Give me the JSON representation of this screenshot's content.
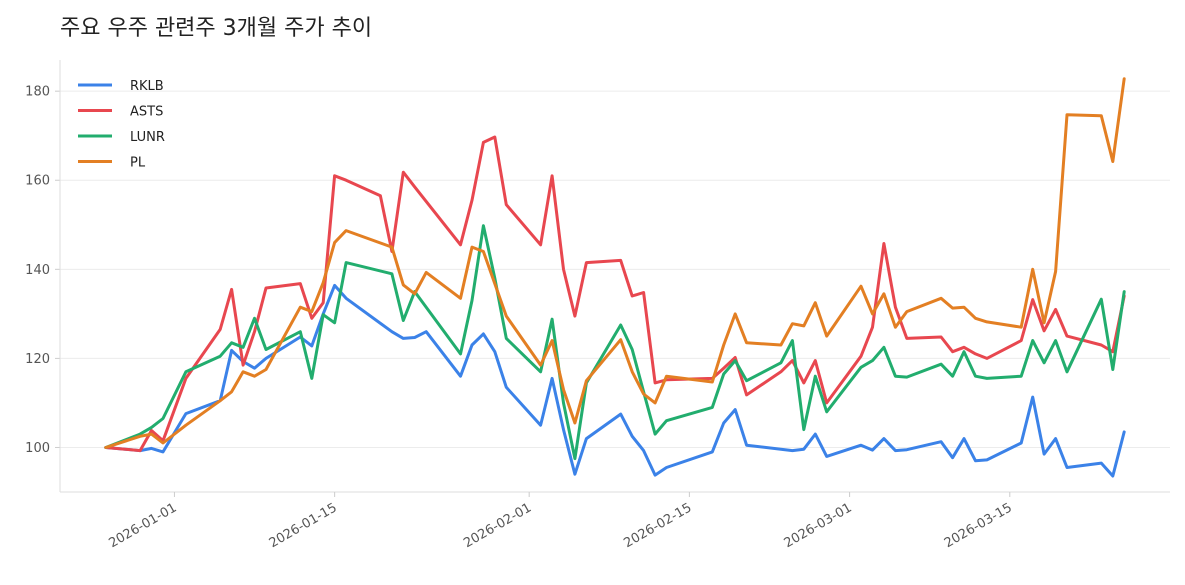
{
  "chart_data": {
    "type": "line",
    "title": "주요 우주 관련주 3개월 주가 추이",
    "xlabel": "",
    "ylabel": "",
    "x_range": [
      "2025-12-22",
      "2026-03-29"
    ],
    "ylim": [
      90,
      187
    ],
    "x_ticks": [
      "2026-01-01",
      "2026-01-15",
      "2026-02-01",
      "2026-02-15",
      "2026-03-01",
      "2026-03-15"
    ],
    "y_ticks": [
      100,
      120,
      140,
      160,
      180
    ],
    "grid": "horizontal",
    "legend": "top-left",
    "series": [
      {
        "name": "RKLB",
        "color": "#3b82e8",
        "points": [
          [
            "2025-12-26",
            100
          ],
          [
            "2025-12-29",
            99.3
          ],
          [
            "2025-12-30",
            99.8
          ],
          [
            "2025-12-31",
            99
          ],
          [
            "2026-01-02",
            107.6
          ],
          [
            "2026-01-05",
            110.5
          ],
          [
            "2026-01-06",
            121.8
          ],
          [
            "2026-01-07",
            119.3
          ],
          [
            "2026-01-08",
            117.8
          ],
          [
            "2026-01-09",
            120
          ],
          [
            "2026-01-12",
            124.8
          ],
          [
            "2026-01-13",
            122.8
          ],
          [
            "2026-01-14",
            130
          ],
          [
            "2026-01-15",
            136.4
          ],
          [
            "2026-01-16",
            133.5
          ],
          [
            "2026-01-20",
            126
          ],
          [
            "2026-01-21",
            124.5
          ],
          [
            "2026-01-22",
            124.7
          ],
          [
            "2026-01-23",
            126
          ],
          [
            "2026-01-26",
            116
          ],
          [
            "2026-01-27",
            123
          ],
          [
            "2026-01-28",
            125.5
          ],
          [
            "2026-01-29",
            121.5
          ],
          [
            "2026-01-30",
            113.5
          ],
          [
            "2026-02-02",
            105
          ],
          [
            "2026-02-03",
            115.5
          ],
          [
            "2026-02-04",
            104
          ],
          [
            "2026-02-05",
            94
          ],
          [
            "2026-02-06",
            102
          ],
          [
            "2026-02-09",
            107.5
          ],
          [
            "2026-02-10",
            102.5
          ],
          [
            "2026-02-11",
            99.3
          ],
          [
            "2026-02-12",
            93.8
          ],
          [
            "2026-02-13",
            95.5
          ],
          [
            "2026-02-17",
            99
          ],
          [
            "2026-02-18",
            105.5
          ],
          [
            "2026-02-19",
            108.5
          ],
          [
            "2026-02-20",
            100.5
          ],
          [
            "2026-02-24",
            99.3
          ],
          [
            "2026-02-25",
            99.6
          ],
          [
            "2026-02-26",
            103
          ],
          [
            "2026-02-27",
            98
          ],
          [
            "2026-03-02",
            100.5
          ],
          [
            "2026-03-03",
            99.4
          ],
          [
            "2026-03-04",
            102
          ],
          [
            "2026-03-05",
            99.3
          ],
          [
            "2026-03-06",
            99.5
          ],
          [
            "2026-03-09",
            101.3
          ],
          [
            "2026-03-10",
            97.7
          ],
          [
            "2026-03-11",
            102
          ],
          [
            "2026-03-12",
            97
          ],
          [
            "2026-03-13",
            97.2
          ],
          [
            "2026-03-16",
            101
          ],
          [
            "2026-03-17",
            111.3
          ],
          [
            "2026-03-18",
            98.5
          ],
          [
            "2026-03-19",
            102
          ],
          [
            "2026-03-20",
            95.5
          ],
          [
            "2026-03-23",
            96.5
          ],
          [
            "2026-03-24",
            93.6
          ],
          [
            "2026-03-25",
            103.5
          ]
        ]
      },
      {
        "name": "ASTS",
        "color": "#e8474f",
        "points": [
          [
            "2025-12-26",
            100
          ],
          [
            "2025-12-29",
            99.3
          ],
          [
            "2025-12-30",
            103.8
          ],
          [
            "2025-12-31",
            101.5
          ],
          [
            "2026-01-02",
            115.5
          ],
          [
            "2026-01-05",
            126.5
          ],
          [
            "2026-01-06",
            135.5
          ],
          [
            "2026-01-07",
            118.5
          ],
          [
            "2026-01-08",
            126
          ],
          [
            "2026-01-09",
            135.8
          ],
          [
            "2026-01-12",
            136.8
          ],
          [
            "2026-01-13",
            129
          ],
          [
            "2026-01-14",
            132.5
          ],
          [
            "2026-01-15",
            161
          ],
          [
            "2026-01-16",
            160
          ],
          [
            "2026-01-19",
            156.5
          ],
          [
            "2026-01-20",
            144
          ],
          [
            "2026-01-21",
            161.8
          ],
          [
            "2026-01-22",
            158.5
          ],
          [
            "2026-01-26",
            145.5
          ],
          [
            "2026-01-27",
            155.5
          ],
          [
            "2026-01-28",
            168.5
          ],
          [
            "2026-01-29",
            169.7
          ],
          [
            "2026-01-30",
            154.5
          ],
          [
            "2026-02-02",
            145.5
          ],
          [
            "2026-02-03",
            161
          ],
          [
            "2026-02-04",
            140
          ],
          [
            "2026-02-05",
            129.5
          ],
          [
            "2026-02-06",
            141.5
          ],
          [
            "2026-02-09",
            142
          ],
          [
            "2026-02-10",
            134
          ],
          [
            "2026-02-11",
            134.8
          ],
          [
            "2026-02-12",
            114.5
          ],
          [
            "2026-02-13",
            115.2
          ],
          [
            "2026-02-17",
            115.5
          ],
          [
            "2026-02-18",
            117.8
          ],
          [
            "2026-02-19",
            120.2
          ],
          [
            "2026-02-20",
            111.8
          ],
          [
            "2026-02-23",
            117
          ],
          [
            "2026-02-24",
            119.5
          ],
          [
            "2026-02-25",
            114.5
          ],
          [
            "2026-02-26",
            119.5
          ],
          [
            "2026-02-27",
            110
          ],
          [
            "2026-03-02",
            120.5
          ],
          [
            "2026-03-03",
            127
          ],
          [
            "2026-03-04",
            145.8
          ],
          [
            "2026-03-05",
            131.5
          ],
          [
            "2026-03-06",
            124.5
          ],
          [
            "2026-03-09",
            124.8
          ],
          [
            "2026-03-10",
            121.5
          ],
          [
            "2026-03-11",
            122.5
          ],
          [
            "2026-03-12",
            121
          ],
          [
            "2026-03-13",
            120
          ],
          [
            "2026-03-16",
            124
          ],
          [
            "2026-03-17",
            133.2
          ],
          [
            "2026-03-18",
            126.2
          ],
          [
            "2026-03-19",
            131
          ],
          [
            "2026-03-20",
            125
          ],
          [
            "2026-03-23",
            123
          ],
          [
            "2026-03-24",
            121.5
          ],
          [
            "2026-03-25",
            134
          ]
        ]
      },
      {
        "name": "LUNR",
        "color": "#22ad6e",
        "points": [
          [
            "2025-12-26",
            100
          ],
          [
            "2025-12-29",
            103
          ],
          [
            "2025-12-30",
            104.5
          ],
          [
            "2025-12-31",
            106.5
          ],
          [
            "2026-01-02",
            117
          ],
          [
            "2026-01-05",
            120.5
          ],
          [
            "2026-01-06",
            123.5
          ],
          [
            "2026-01-07",
            122.5
          ],
          [
            "2026-01-08",
            129
          ],
          [
            "2026-01-09",
            122
          ],
          [
            "2026-01-12",
            126
          ],
          [
            "2026-01-13",
            115.5
          ],
          [
            "2026-01-14",
            129.8
          ],
          [
            "2026-01-15",
            128
          ],
          [
            "2026-01-16",
            141.5
          ],
          [
            "2026-01-20",
            139
          ],
          [
            "2026-01-21",
            128.5
          ],
          [
            "2026-01-22",
            135
          ],
          [
            "2026-01-26",
            121
          ],
          [
            "2026-01-27",
            133
          ],
          [
            "2026-01-28",
            149.8
          ],
          [
            "2026-01-29",
            138
          ],
          [
            "2026-01-30",
            124.5
          ],
          [
            "2026-02-02",
            117
          ],
          [
            "2026-02-03",
            128.8
          ],
          [
            "2026-02-04",
            110
          ],
          [
            "2026-02-05",
            97.5
          ],
          [
            "2026-02-06",
            114.5
          ],
          [
            "2026-02-09",
            127.5
          ],
          [
            "2026-02-10",
            122
          ],
          [
            "2026-02-11",
            112.5
          ],
          [
            "2026-02-12",
            103
          ],
          [
            "2026-02-13",
            106
          ],
          [
            "2026-02-17",
            109
          ],
          [
            "2026-02-18",
            116.5
          ],
          [
            "2026-02-19",
            119.5
          ],
          [
            "2026-02-20",
            115
          ],
          [
            "2026-02-23",
            119
          ],
          [
            "2026-02-24",
            124
          ],
          [
            "2026-02-25",
            104
          ],
          [
            "2026-02-26",
            116
          ],
          [
            "2026-02-27",
            108
          ],
          [
            "2026-03-02",
            118
          ],
          [
            "2026-03-03",
            119.5
          ],
          [
            "2026-03-04",
            122.5
          ],
          [
            "2026-03-05",
            116
          ],
          [
            "2026-03-06",
            115.8
          ],
          [
            "2026-03-09",
            118.7
          ],
          [
            "2026-03-10",
            116
          ],
          [
            "2026-03-11",
            121.5
          ],
          [
            "2026-03-12",
            116
          ],
          [
            "2026-03-13",
            115.5
          ],
          [
            "2026-03-16",
            116
          ],
          [
            "2026-03-17",
            124
          ],
          [
            "2026-03-18",
            119
          ],
          [
            "2026-03-19",
            124
          ],
          [
            "2026-03-20",
            117
          ],
          [
            "2026-03-23",
            133.3
          ],
          [
            "2026-03-24",
            117.5
          ],
          [
            "2026-03-25",
            135
          ]
        ]
      },
      {
        "name": "PL",
        "color": "#e37f23",
        "points": [
          [
            "2025-12-26",
            100
          ],
          [
            "2025-12-29",
            102.5
          ],
          [
            "2025-12-30",
            103
          ],
          [
            "2025-12-31",
            101
          ],
          [
            "2026-01-02",
            105
          ],
          [
            "2026-01-05",
            110.5
          ],
          [
            "2026-01-06",
            112.5
          ],
          [
            "2026-01-07",
            117
          ],
          [
            "2026-01-08",
            116
          ],
          [
            "2026-01-09",
            117.5
          ],
          [
            "2026-01-12",
            131.5
          ],
          [
            "2026-01-13",
            130.5
          ],
          [
            "2026-01-14",
            137
          ],
          [
            "2026-01-15",
            146
          ],
          [
            "2026-01-16",
            148.7
          ],
          [
            "2026-01-20",
            145
          ],
          [
            "2026-01-21",
            136.5
          ],
          [
            "2026-01-22",
            134.5
          ],
          [
            "2026-01-23",
            139.3
          ],
          [
            "2026-01-26",
            133.5
          ],
          [
            "2026-01-27",
            145
          ],
          [
            "2026-01-28",
            144
          ],
          [
            "2026-01-30",
            129.5
          ],
          [
            "2026-02-02",
            118.5
          ],
          [
            "2026-02-03",
            124
          ],
          [
            "2026-02-04",
            113
          ],
          [
            "2026-02-05",
            105.5
          ],
          [
            "2026-02-06",
            115
          ],
          [
            "2026-02-09",
            124.2
          ],
          [
            "2026-02-10",
            117
          ],
          [
            "2026-02-11",
            112
          ],
          [
            "2026-02-12",
            110
          ],
          [
            "2026-02-13",
            116
          ],
          [
            "2026-02-17",
            114.7
          ],
          [
            "2026-02-18",
            123
          ],
          [
            "2026-02-19",
            130
          ],
          [
            "2026-02-20",
            123.5
          ],
          [
            "2026-02-23",
            123
          ],
          [
            "2026-02-24",
            127.8
          ],
          [
            "2026-02-25",
            127.3
          ],
          [
            "2026-02-26",
            132.5
          ],
          [
            "2026-02-27",
            125
          ],
          [
            "2026-03-02",
            136.2
          ],
          [
            "2026-03-03",
            130
          ],
          [
            "2026-03-04",
            134.5
          ],
          [
            "2026-03-05",
            127
          ],
          [
            "2026-03-06",
            130.5
          ],
          [
            "2026-03-09",
            133.5
          ],
          [
            "2026-03-10",
            131.3
          ],
          [
            "2026-03-11",
            131.5
          ],
          [
            "2026-03-12",
            129
          ],
          [
            "2026-03-13",
            128.2
          ],
          [
            "2026-03-16",
            127
          ],
          [
            "2026-03-17",
            140
          ],
          [
            "2026-03-18",
            128
          ],
          [
            "2026-03-19",
            139.5
          ],
          [
            "2026-03-20",
            174.7
          ],
          [
            "2026-03-23",
            174.5
          ],
          [
            "2026-03-24",
            164.2
          ],
          [
            "2026-03-25",
            182.8
          ]
        ]
      }
    ]
  }
}
